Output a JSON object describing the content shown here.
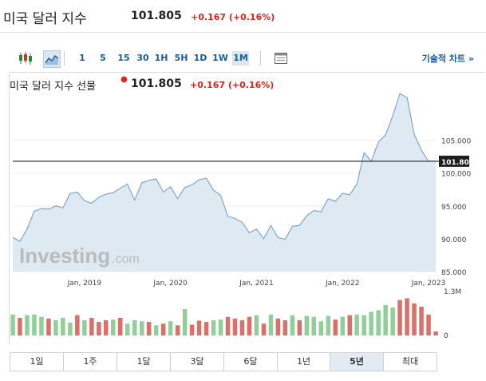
{
  "header": {
    "title": "미국 달러 지수",
    "price": "101.805",
    "change": "+0.167 (+0.16%)"
  },
  "toolbar": {
    "candle_icon": "candlestick-icon",
    "area_icon": "area-chart-icon",
    "intervals": [
      "1",
      "5",
      "15",
      "30",
      "1H",
      "5H",
      "1D",
      "1W",
      "1M"
    ],
    "active_interval": "1M",
    "table_icon": "table-icon",
    "technical_link": "기술적 차트 »"
  },
  "legend": {
    "name": "미국 달러 지수 선물",
    "price": "101.805",
    "change": "+0.167 (+0.16%)"
  },
  "watermark": {
    "brand": "Investing",
    "suffix": ".com"
  },
  "chart_data": {
    "type": "area",
    "x_ticks": [
      "Jan, 2019",
      "Jan, 2020",
      "Jan, 2021",
      "Jan, 2022",
      "Jan, 2023"
    ],
    "y_ticks": [
      "105.000",
      "100.000",
      "95.000",
      "90.000",
      "85.000"
    ],
    "ylim": [
      85,
      112
    ],
    "current_value": "101.800",
    "series": [
      {
        "x": [
          "2018-03",
          "2018-04",
          "2018-05",
          "2018-06",
          "2018-07",
          "2018-08",
          "2018-09",
          "2018-10",
          "2018-11",
          "2018-12",
          "2019-01",
          "2019-02",
          "2019-03",
          "2019-04",
          "2019-05",
          "2019-06",
          "2019-07",
          "2019-08",
          "2019-09",
          "2019-10",
          "2019-11",
          "2019-12",
          "2020-01",
          "2020-02",
          "2020-03",
          "2020-04",
          "2020-05",
          "2020-06",
          "2020-07",
          "2020-08",
          "2020-09",
          "2020-10",
          "2020-11",
          "2020-12",
          "2021-01",
          "2021-02",
          "2021-03",
          "2021-04",
          "2021-05",
          "2021-06",
          "2021-07",
          "2021-08",
          "2021-09",
          "2021-10",
          "2021-11",
          "2021-12",
          "2022-01",
          "2022-02",
          "2022-03",
          "2022-04",
          "2022-05",
          "2022-06",
          "2022-07",
          "2022-08",
          "2022-09",
          "2022-10",
          "2022-11",
          "2022-12",
          "2023-01",
          "2023-02"
        ],
        "values": [
          90.2,
          89.6,
          91.5,
          94.2,
          94.6,
          94.5,
          95.0,
          94.7,
          96.9,
          97.1,
          95.8,
          95.4,
          96.3,
          96.8,
          97.0,
          97.7,
          98.3,
          95.9,
          98.5,
          98.9,
          99.1,
          97.1,
          97.9,
          96.1,
          97.8,
          98.2,
          99.0,
          99.2,
          97.4,
          96.6,
          93.4,
          93.1,
          92.5,
          90.9,
          91.5,
          90.0,
          92.0,
          90.2,
          89.9,
          91.9,
          92.0,
          93.5,
          94.3,
          94.1,
          96.1,
          95.7,
          96.9,
          96.7,
          98.3,
          103.1,
          101.8,
          104.7,
          105.8,
          108.7,
          112.1,
          111.5,
          105.9,
          103.5,
          101.8,
          101.8
        ]
      }
    ],
    "volume": {
      "max_label": "1.3M",
      "min_label": "0",
      "values": [
        0.62,
        0.52,
        0.6,
        0.62,
        0.55,
        0.5,
        0.45,
        0.52,
        0.38,
        0.6,
        0.45,
        0.52,
        0.4,
        0.45,
        0.47,
        0.52,
        0.35,
        0.45,
        0.42,
        0.4,
        0.3,
        0.35,
        0.42,
        0.3,
        0.78,
        0.32,
        0.44,
        0.4,
        0.45,
        0.47,
        0.55,
        0.5,
        0.45,
        0.55,
        0.6,
        0.35,
        0.62,
        0.5,
        0.45,
        0.6,
        0.45,
        0.58,
        0.55,
        0.42,
        0.58,
        0.47,
        0.55,
        0.6,
        0.62,
        0.6,
        0.7,
        0.75,
        0.9,
        0.83,
        1.05,
        1.1,
        0.95,
        0.85,
        0.62,
        0.12
      ],
      "up": [
        true,
        false,
        true,
        true,
        true,
        false,
        true,
        true,
        true,
        false,
        true,
        false,
        false,
        false,
        true,
        false,
        true,
        true,
        true,
        false,
        true,
        false,
        true,
        false,
        true,
        false,
        false,
        false,
        true,
        true,
        false,
        false,
        false,
        false,
        true,
        false,
        true,
        false,
        false,
        true,
        false,
        true,
        true,
        true,
        true,
        false,
        true,
        false,
        true,
        true,
        true,
        true,
        true,
        true,
        false,
        false,
        false,
        false,
        false,
        false
      ],
      "colors": {
        "up": "#90d098",
        "down": "#d9706a"
      }
    }
  },
  "ranges": {
    "items": [
      "1일",
      "1주",
      "1달",
      "3달",
      "6달",
      "1년",
      "5년",
      "최대"
    ],
    "active": "5년"
  },
  "colors": {
    "accent": "#1a5a9c",
    "negative": "#e0261c",
    "area_fill": "#dfe9f2",
    "area_line": "#7da8cc"
  }
}
